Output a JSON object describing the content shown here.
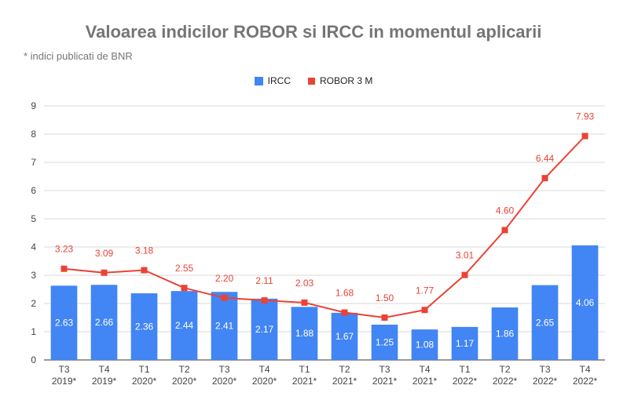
{
  "chart_data": {
    "type": "bar",
    "title": "Valoarea indicilor ROBOR si IRCC in momentul aplicarii",
    "subtitle": "* indici publicati de BNR",
    "legend_placement": "top",
    "categories": [
      [
        "T3",
        "2019*"
      ],
      [
        "T4",
        "2019*"
      ],
      [
        "T1",
        "2020*"
      ],
      [
        "T2",
        "2020*"
      ],
      [
        "T3",
        "2020*"
      ],
      [
        "T4",
        "2020*"
      ],
      [
        "T1",
        "2021*"
      ],
      [
        "T2",
        "2021*"
      ],
      [
        "T3",
        "2021*"
      ],
      [
        "T4",
        "2021*"
      ],
      [
        "T1",
        "2022*"
      ],
      [
        "T2",
        "2022*"
      ],
      [
        "T3",
        "2022*"
      ],
      [
        "T4",
        "2022*"
      ]
    ],
    "series": [
      {
        "name": "IRCC",
        "type": "bar",
        "color": "#4285f4",
        "values": [
          2.63,
          2.66,
          2.36,
          2.44,
          2.41,
          2.17,
          1.88,
          1.67,
          1.25,
          1.08,
          1.17,
          1.86,
          2.65,
          4.06
        ]
      },
      {
        "name": "ROBOR 3 M",
        "type": "line",
        "color": "#ea4335",
        "values": [
          3.23,
          3.09,
          3.18,
          2.55,
          2.2,
          2.11,
          2.03,
          1.68,
          1.5,
          1.77,
          3.01,
          4.6,
          6.44,
          7.93
        ]
      }
    ],
    "ylim": [
      0,
      9
    ],
    "yticks": [
      0,
      1,
      2,
      3,
      4,
      5,
      6,
      7,
      8,
      9
    ],
    "grid": true,
    "xlabel": "",
    "ylabel": ""
  }
}
